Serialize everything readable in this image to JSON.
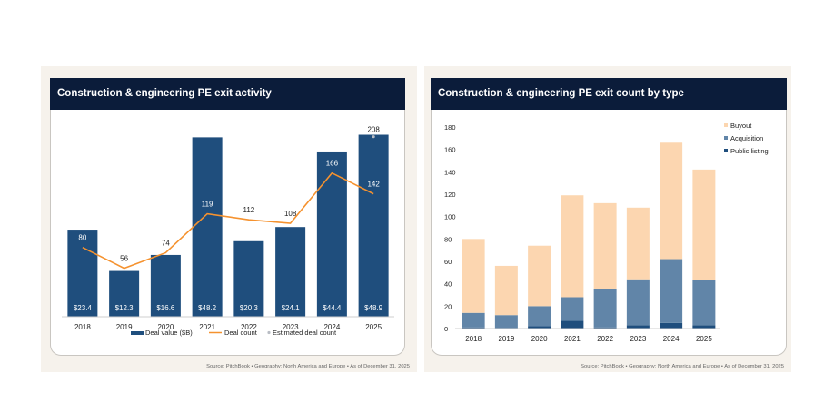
{
  "colors": {
    "header_bg": "#0b1c3a",
    "deal_value_bar": "#1f4e7d",
    "deal_count_line": "#f5922f",
    "estimated_marker": "#b8bcc4",
    "buyout": "#fcd6b0",
    "acquisition": "#6185a8",
    "public_listing": "#1f4e7d"
  },
  "chart_data": [
    {
      "type": "bar",
      "title": "Construction & engineering PE exit activity",
      "categories": [
        "2018",
        "2019",
        "2020",
        "2021",
        "2022",
        "2023",
        "2024",
        "2025"
      ],
      "series": [
        {
          "name": "Deal value ($B)",
          "kind": "bar",
          "values": [
            23.4,
            12.3,
            16.6,
            48.2,
            20.3,
            24.1,
            44.4,
            48.9
          ],
          "labels": [
            "$23.4",
            "$12.3",
            "$16.6",
            "$48.2",
            "$20.3",
            "$24.1",
            "$44.4",
            "$48.9"
          ]
        },
        {
          "name": "Deal count",
          "kind": "line",
          "values": [
            80,
            56,
            74,
            119,
            112,
            108,
            166,
            142
          ]
        },
        {
          "name": "Estimated deal count",
          "kind": "marker",
          "values": [
            null,
            null,
            null,
            null,
            null,
            null,
            null,
            208
          ]
        }
      ],
      "legend": [
        "Deal value ($B)",
        "Deal count",
        "Estimated deal count"
      ],
      "legend_position": "bottom",
      "grid": false,
      "source": "Source: PitchBook  •  Geography: North America and Europe  •  As of December 31, 2025"
    },
    {
      "type": "bar",
      "stacked": true,
      "title": "Construction & engineering PE exit count by type",
      "categories": [
        "2018",
        "2019",
        "2020",
        "2021",
        "2022",
        "2023",
        "2024",
        "2025"
      ],
      "series": [
        {
          "name": "Public listing",
          "values": [
            1,
            0,
            2,
            7,
            1,
            3,
            5,
            3
          ]
        },
        {
          "name": "Acquisition",
          "values": [
            13,
            12,
            18,
            21,
            34,
            41,
            57,
            40
          ]
        },
        {
          "name": "Buyout",
          "values": [
            66,
            44,
            54,
            91,
            77,
            64,
            104,
            99
          ]
        }
      ],
      "legend": [
        "Buyout",
        "Acquisition",
        "Public listing"
      ],
      "legend_position": "top-right",
      "yticks": [
        0,
        20,
        40,
        60,
        80,
        100,
        120,
        140,
        160,
        180
      ],
      "ylim": [
        0,
        180
      ],
      "grid": false,
      "source": "Source: PitchBook  •  Geography: North America and Europe  •  As of December 31, 2025"
    }
  ]
}
